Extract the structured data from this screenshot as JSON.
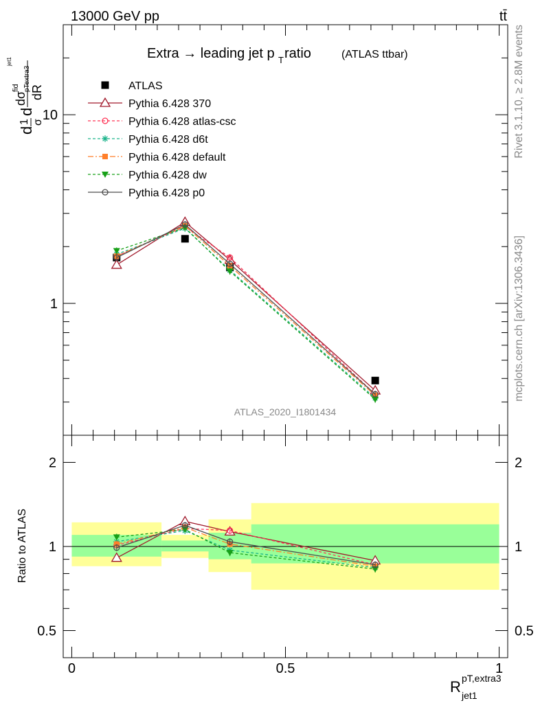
{
  "header": {
    "energy_label": "13000 GeV pp",
    "process_label": "tt̄"
  },
  "side_labels": {
    "rivet": "Rivet 3.1.10, ≥ 2.8M events",
    "mcplots": "mcplots.cern.ch [arXiv:1306.3436]"
  },
  "analysis_tag": "ATLAS_2020_I1801434",
  "chart_data": [
    {
      "type": "line",
      "panel": "main",
      "title": "Extra → leading jet p_T ratio (ATLAS ttbar)",
      "title_main": "Extra → leading jet p",
      "title_sub": "T",
      "title_after": " ratio",
      "title_small": "(ATLAS ttbar)",
      "ylabel": "dσ/dR (normalized, 1/σ)",
      "y_scale": "log",
      "ylim": [
        0.2,
        30
      ],
      "xlim": [
        -0.02,
        1.02
      ],
      "yticks": [
        1,
        10
      ],
      "ytick_labels": [
        "1",
        "10"
      ],
      "legend_placement": "top-left",
      "x": [
        0.105,
        0.265,
        0.37,
        0.71
      ],
      "series": [
        {
          "name": "ATLAS",
          "values": [
            1.75,
            2.2,
            1.55,
            0.39
          ],
          "color": "#000000",
          "marker": "square",
          "dash": "none"
        },
        {
          "name": "Pythia 6.428 370",
          "values": [
            1.6,
            2.7,
            1.7,
            0.345
          ],
          "color": "#a0182a",
          "marker": "triangle-open",
          "dash": "none"
        },
        {
          "name": "Pythia 6.428 atlas-csc",
          "values": [
            1.78,
            2.55,
            1.75,
            0.33
          ],
          "color": "#ff3355",
          "marker": "circle-open",
          "dash": "4,3"
        },
        {
          "name": "Pythia 6.428 d6t",
          "values": [
            1.82,
            2.5,
            1.5,
            0.315
          ],
          "color": "#19b38a",
          "marker": "star",
          "dash": "4,3"
        },
        {
          "name": "Pythia 6.428 default",
          "values": [
            1.78,
            2.58,
            1.58,
            0.325
          ],
          "color": "#ff7f2a",
          "marker": "square-filled",
          "dash": "8,3,2,3"
        },
        {
          "name": "Pythia 6.428 dw",
          "values": [
            1.9,
            2.52,
            1.48,
            0.31
          ],
          "color": "#18a018",
          "marker": "triangle-down",
          "dash": "4,3"
        },
        {
          "name": "Pythia 6.428 p0",
          "values": [
            1.75,
            2.62,
            1.62,
            0.33
          ],
          "color": "#4d4d4d",
          "marker": "circle-open",
          "dash": "none"
        }
      ]
    },
    {
      "type": "line",
      "panel": "ratio",
      "ylabel": "Ratio to ATLAS",
      "xlabel": "R",
      "xlabel_sub": "jet1",
      "xlabel_sup": "pT,extra3",
      "y_scale": "log",
      "ylim": [
        0.4,
        2.5
      ],
      "xlim": [
        -0.02,
        1.02
      ],
      "xticks": [
        0,
        0.5,
        1
      ],
      "xtick_labels": [
        "0",
        "0.5",
        "1"
      ],
      "yticks": [
        0.5,
        1,
        2
      ],
      "ytick_labels": [
        "0.5",
        "1",
        "2"
      ],
      "reference_line": 1,
      "bands": [
        {
          "x0": 0.0,
          "x1": 0.21,
          "inner": [
            0.92,
            1.1
          ],
          "outer": [
            0.85,
            1.22
          ]
        },
        {
          "x0": 0.21,
          "x1": 0.32,
          "inner": [
            0.96,
            1.05
          ],
          "outer": [
            0.91,
            1.1
          ]
        },
        {
          "x0": 0.32,
          "x1": 0.42,
          "inner": [
            0.9,
            1.12
          ],
          "outer": [
            0.81,
            1.25
          ]
        },
        {
          "x0": 0.42,
          "x1": 1.0,
          "inner": [
            0.87,
            1.2
          ],
          "outer": [
            0.7,
            1.43
          ]
        }
      ],
      "x": [
        0.105,
        0.265,
        0.37,
        0.71
      ],
      "series": [
        {
          "name": "Pythia 6.428 370",
          "values": [
            0.91,
            1.23,
            1.13,
            0.89
          ],
          "color": "#a0182a",
          "marker": "triangle-open",
          "dash": "none"
        },
        {
          "name": "Pythia 6.428 atlas-csc",
          "values": [
            1.01,
            1.16,
            1.14,
            0.86
          ],
          "color": "#ff3355",
          "marker": "circle-open",
          "dash": "4,3"
        },
        {
          "name": "Pythia 6.428 d6t",
          "values": [
            1.04,
            1.14,
            0.97,
            0.84
          ],
          "color": "#19b38a",
          "marker": "star",
          "dash": "4,3"
        },
        {
          "name": "Pythia 6.428 default",
          "values": [
            1.02,
            1.17,
            1.02,
            0.85
          ],
          "color": "#ff7f2a",
          "marker": "square-filled",
          "dash": "8,3,2,3"
        },
        {
          "name": "Pythia 6.428 dw",
          "values": [
            1.08,
            1.15,
            0.95,
            0.83
          ],
          "color": "#18a018",
          "marker": "triangle-down",
          "dash": "4,3"
        },
        {
          "name": "Pythia 6.428 p0",
          "values": [
            0.99,
            1.19,
            1.04,
            0.86
          ],
          "color": "#4d4d4d",
          "marker": "circle-open",
          "dash": "none"
        }
      ]
    }
  ]
}
